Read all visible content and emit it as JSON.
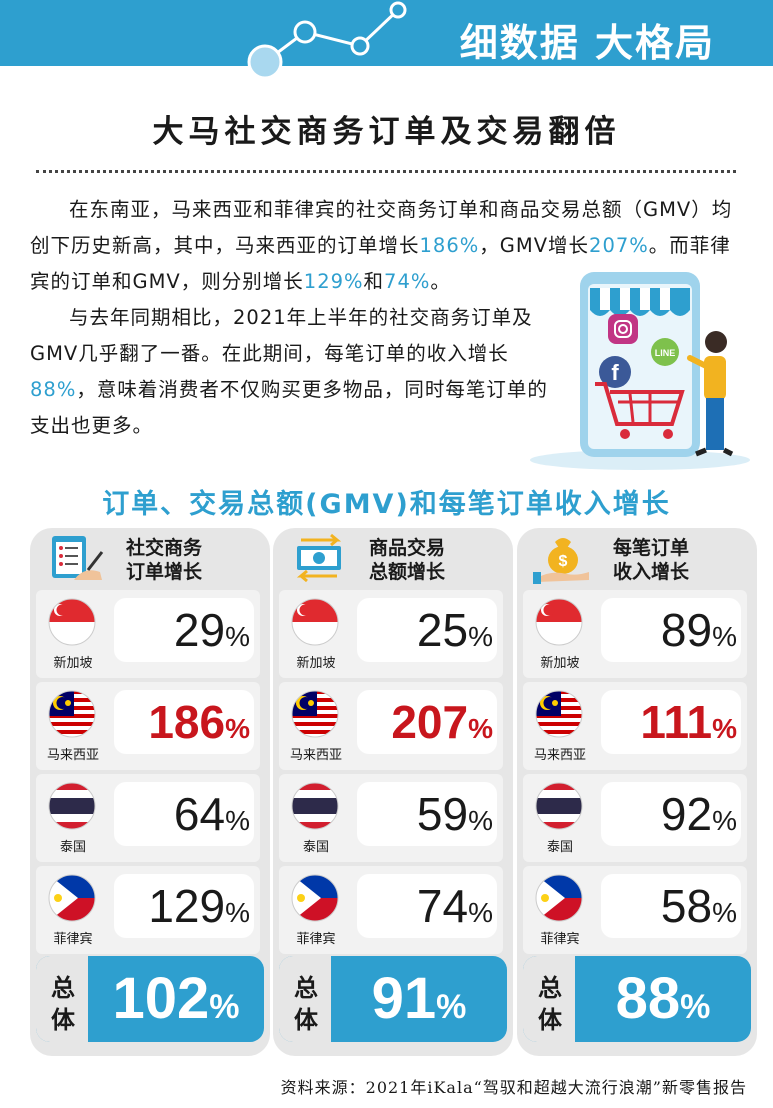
{
  "banner": {
    "title": "细数据 大格局"
  },
  "main_title": "大马社交商务订单及交易翻倍",
  "article": {
    "p1_parts": [
      "在东南亚，马来西亚和菲律宾的社交商务订单和商品交易总额（GMV）均创下历史新高，其中，马来西亚的订单增长",
      "186%",
      "，GMV增长",
      "207%",
      "。而菲律宾的订单和GMV，则分别增长",
      "129%",
      "和",
      "74%",
      "。"
    ],
    "p2_parts": [
      "与去年同期相比，2021年上半年的社交商务订单及GMV几乎翻了一番。在此期间，每笔订单的收入增长",
      "88%",
      "，意味着消费者不仅购买更多物品，同时每笔订单的支出也更多。"
    ]
  },
  "subtitle": "订单、交易总额(GMV)和每笔订单收入增长",
  "columns": [
    {
      "label_l1": "社交商务",
      "label_l2": "订单增长",
      "rows": [
        {
          "country": "新加坡",
          "value": "29",
          "unit": "%"
        },
        {
          "country": "马来西亚",
          "value": "186",
          "unit": "%"
        },
        {
          "country": "泰国",
          "value": "64",
          "unit": "%"
        },
        {
          "country": "菲律宾",
          "value": "129",
          "unit": "%"
        }
      ],
      "total_l1": "总",
      "total_l2": "体",
      "total_value": "102",
      "total_unit": "%"
    },
    {
      "label_l1": "商品交易",
      "label_l2": "总额增长",
      "rows": [
        {
          "country": "新加坡",
          "value": "25",
          "unit": "%"
        },
        {
          "country": "马来西亚",
          "value": "207",
          "unit": "%"
        },
        {
          "country": "泰国",
          "value": "59",
          "unit": "%"
        },
        {
          "country": "菲律宾",
          "value": "74",
          "unit": "%"
        }
      ],
      "total_l1": "总",
      "total_l2": "体",
      "total_value": "91",
      "total_unit": "%"
    },
    {
      "label_l1": "每笔订单",
      "label_l2": "收入增长",
      "rows": [
        {
          "country": "新加坡",
          "value": "89",
          "unit": "%"
        },
        {
          "country": "马来西亚",
          "value": "111",
          "unit": "%"
        },
        {
          "country": "泰国",
          "value": "92",
          "unit": "%"
        },
        {
          "country": "菲律宾",
          "value": "58",
          "unit": "%"
        }
      ],
      "total_l1": "总",
      "total_l2": "体",
      "total_value": "88",
      "total_unit": "%"
    }
  ],
  "source": "资料来源：2021年iKala“驾驭和超越大流行浪潮”新零售报告",
  "colors": {
    "brand_blue": "#2e9fcf",
    "highlight_red": "#c8161d",
    "panel_grey": "#e6e6e6"
  }
}
